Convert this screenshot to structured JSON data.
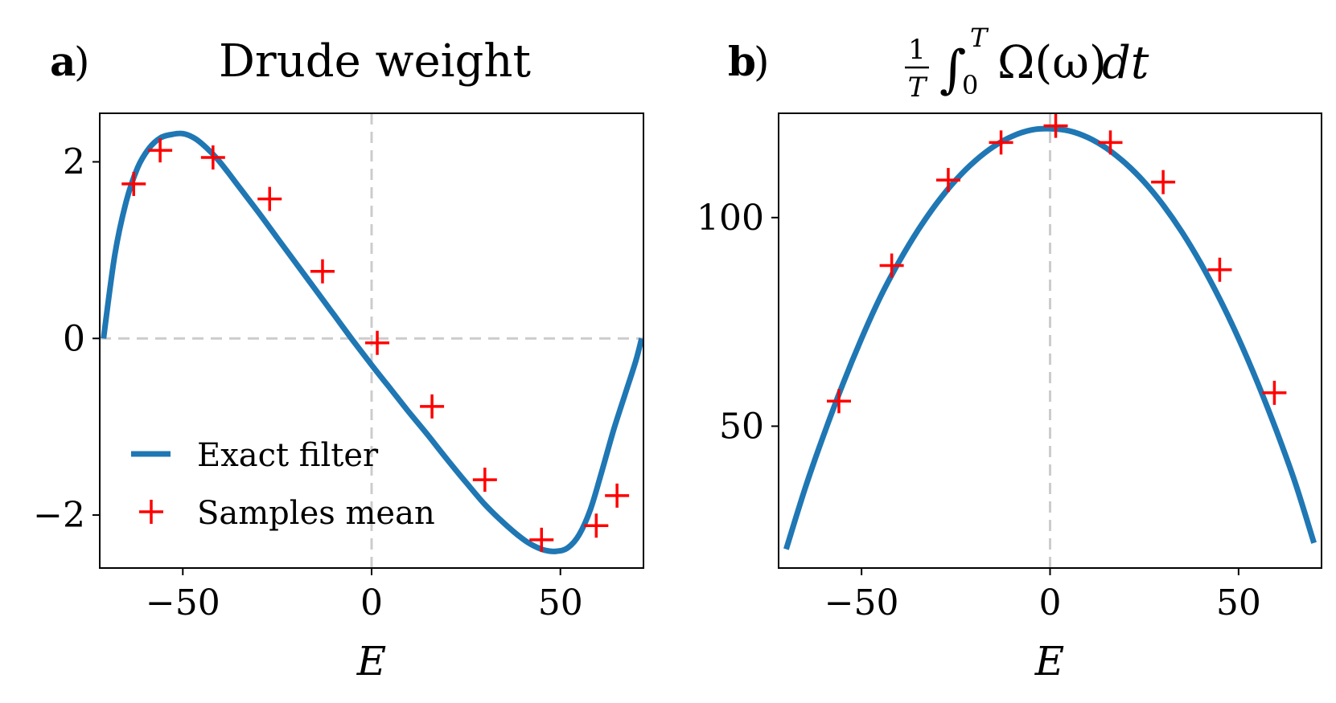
{
  "chart_data": [
    {
      "type": "line",
      "panel": "a",
      "panel_paren": ")",
      "title": "Drude weight",
      "xlabel": "E",
      "ylabel": "",
      "xlim": [
        -72,
        72
      ],
      "ylim": [
        -2.6,
        2.55
      ],
      "xticks": [
        -50,
        0,
        50
      ],
      "xtick_labels": [
        "−50",
        "0",
        "50"
      ],
      "yticks": [
        -2,
        0,
        2
      ],
      "ytick_labels": [
        "−2",
        "0",
        "2"
      ],
      "grid": false,
      "reference_lines": {
        "x": 0,
        "y": 0,
        "style": "dashed",
        "color": "#cccccc"
      },
      "legend": {
        "placement": "lower-left",
        "entries": [
          "Exact filter",
          "Samples mean"
        ]
      },
      "series": [
        {
          "name": "Exact filter",
          "kind": "line",
          "color": "#1f77b4",
          "x": [
            -71,
            -68,
            -65,
            -62,
            -59,
            -56,
            -53,
            -50,
            -47,
            -44,
            -41,
            -38,
            -35,
            -30,
            -25,
            -20,
            -15,
            -10,
            -5,
            0,
            5,
            10,
            15,
            20,
            25,
            30,
            35,
            40,
            43,
            46,
            49,
            52,
            55,
            58,
            61,
            64,
            67,
            70,
            71.5
          ],
          "y": [
            0,
            0.95,
            1.55,
            1.93,
            2.15,
            2.27,
            2.31,
            2.32,
            2.27,
            2.17,
            2.04,
            1.88,
            1.71,
            1.43,
            1.14,
            0.85,
            0.56,
            0.27,
            -0.02,
            -0.3,
            -0.57,
            -0.84,
            -1.1,
            -1.37,
            -1.63,
            -1.88,
            -2.09,
            -2.27,
            -2.35,
            -2.4,
            -2.41,
            -2.37,
            -2.22,
            -1.93,
            -1.5,
            -1.05,
            -0.65,
            -0.25,
            0
          ]
        },
        {
          "name": "Samples mean",
          "kind": "scatter",
          "marker": "+",
          "color": "#ff0000",
          "x": [
            -63,
            -56,
            -42,
            -27,
            -13,
            1.5,
            16,
            30,
            45,
            59.5,
            65
          ],
          "y": [
            1.75,
            2.13,
            2.05,
            1.58,
            0.76,
            -0.05,
            -0.77,
            -1.6,
            -2.28,
            -2.12,
            -1.78
          ]
        }
      ]
    },
    {
      "type": "line",
      "panel": "b",
      "panel_paren": ")",
      "title": "1/T ∫₀ᵀ Ω(ω) dt",
      "title_math": {
        "frac_num": "1",
        "frac_den": "T",
        "integral": "∫",
        "upper": "T",
        "lower": "0",
        "body": "Ω(ω)",
        "d": "dt"
      },
      "xlabel": "E",
      "ylabel": "",
      "xlim": [
        -72,
        72
      ],
      "ylim": [
        16,
        125
      ],
      "xticks": [
        -50,
        0,
        50
      ],
      "xtick_labels": [
        "−50",
        "0",
        "50"
      ],
      "yticks": [
        50,
        100
      ],
      "ytick_labels": [
        "50",
        "100"
      ],
      "grid": false,
      "reference_lines": {
        "x": 0,
        "style": "dashed",
        "color": "#cccccc"
      },
      "series": [
        {
          "name": "Exact filter",
          "kind": "line",
          "color": "#1f77b4",
          "x": [
            -70,
            -65,
            -60,
            -55,
            -50,
            -45,
            -40,
            -35,
            -30,
            -25,
            -20,
            -15,
            -10,
            -5,
            0,
            5,
            10,
            15,
            20,
            25,
            30,
            35,
            40,
            45,
            50,
            55,
            60,
            65,
            70
          ],
          "y": [
            20.5,
            35,
            48,
            60,
            71,
            81,
            89.5,
            97,
            103.5,
            109,
            113.5,
            117,
            119.5,
            121,
            121.3,
            120.8,
            119.2,
            116.6,
            113,
            108.5,
            103,
            96.5,
            89,
            80.5,
            71,
            60.5,
            49,
            36.5,
            22
          ]
        },
        {
          "name": "Samples mean",
          "kind": "scatter",
          "marker": "+",
          "color": "#ff0000",
          "x": [
            -56,
            -42,
            -27,
            -13,
            1.5,
            16,
            30,
            45,
            59.5
          ],
          "y": [
            56,
            88.5,
            109,
            118,
            122,
            118,
            108.5,
            87.5,
            58
          ]
        }
      ]
    }
  ]
}
